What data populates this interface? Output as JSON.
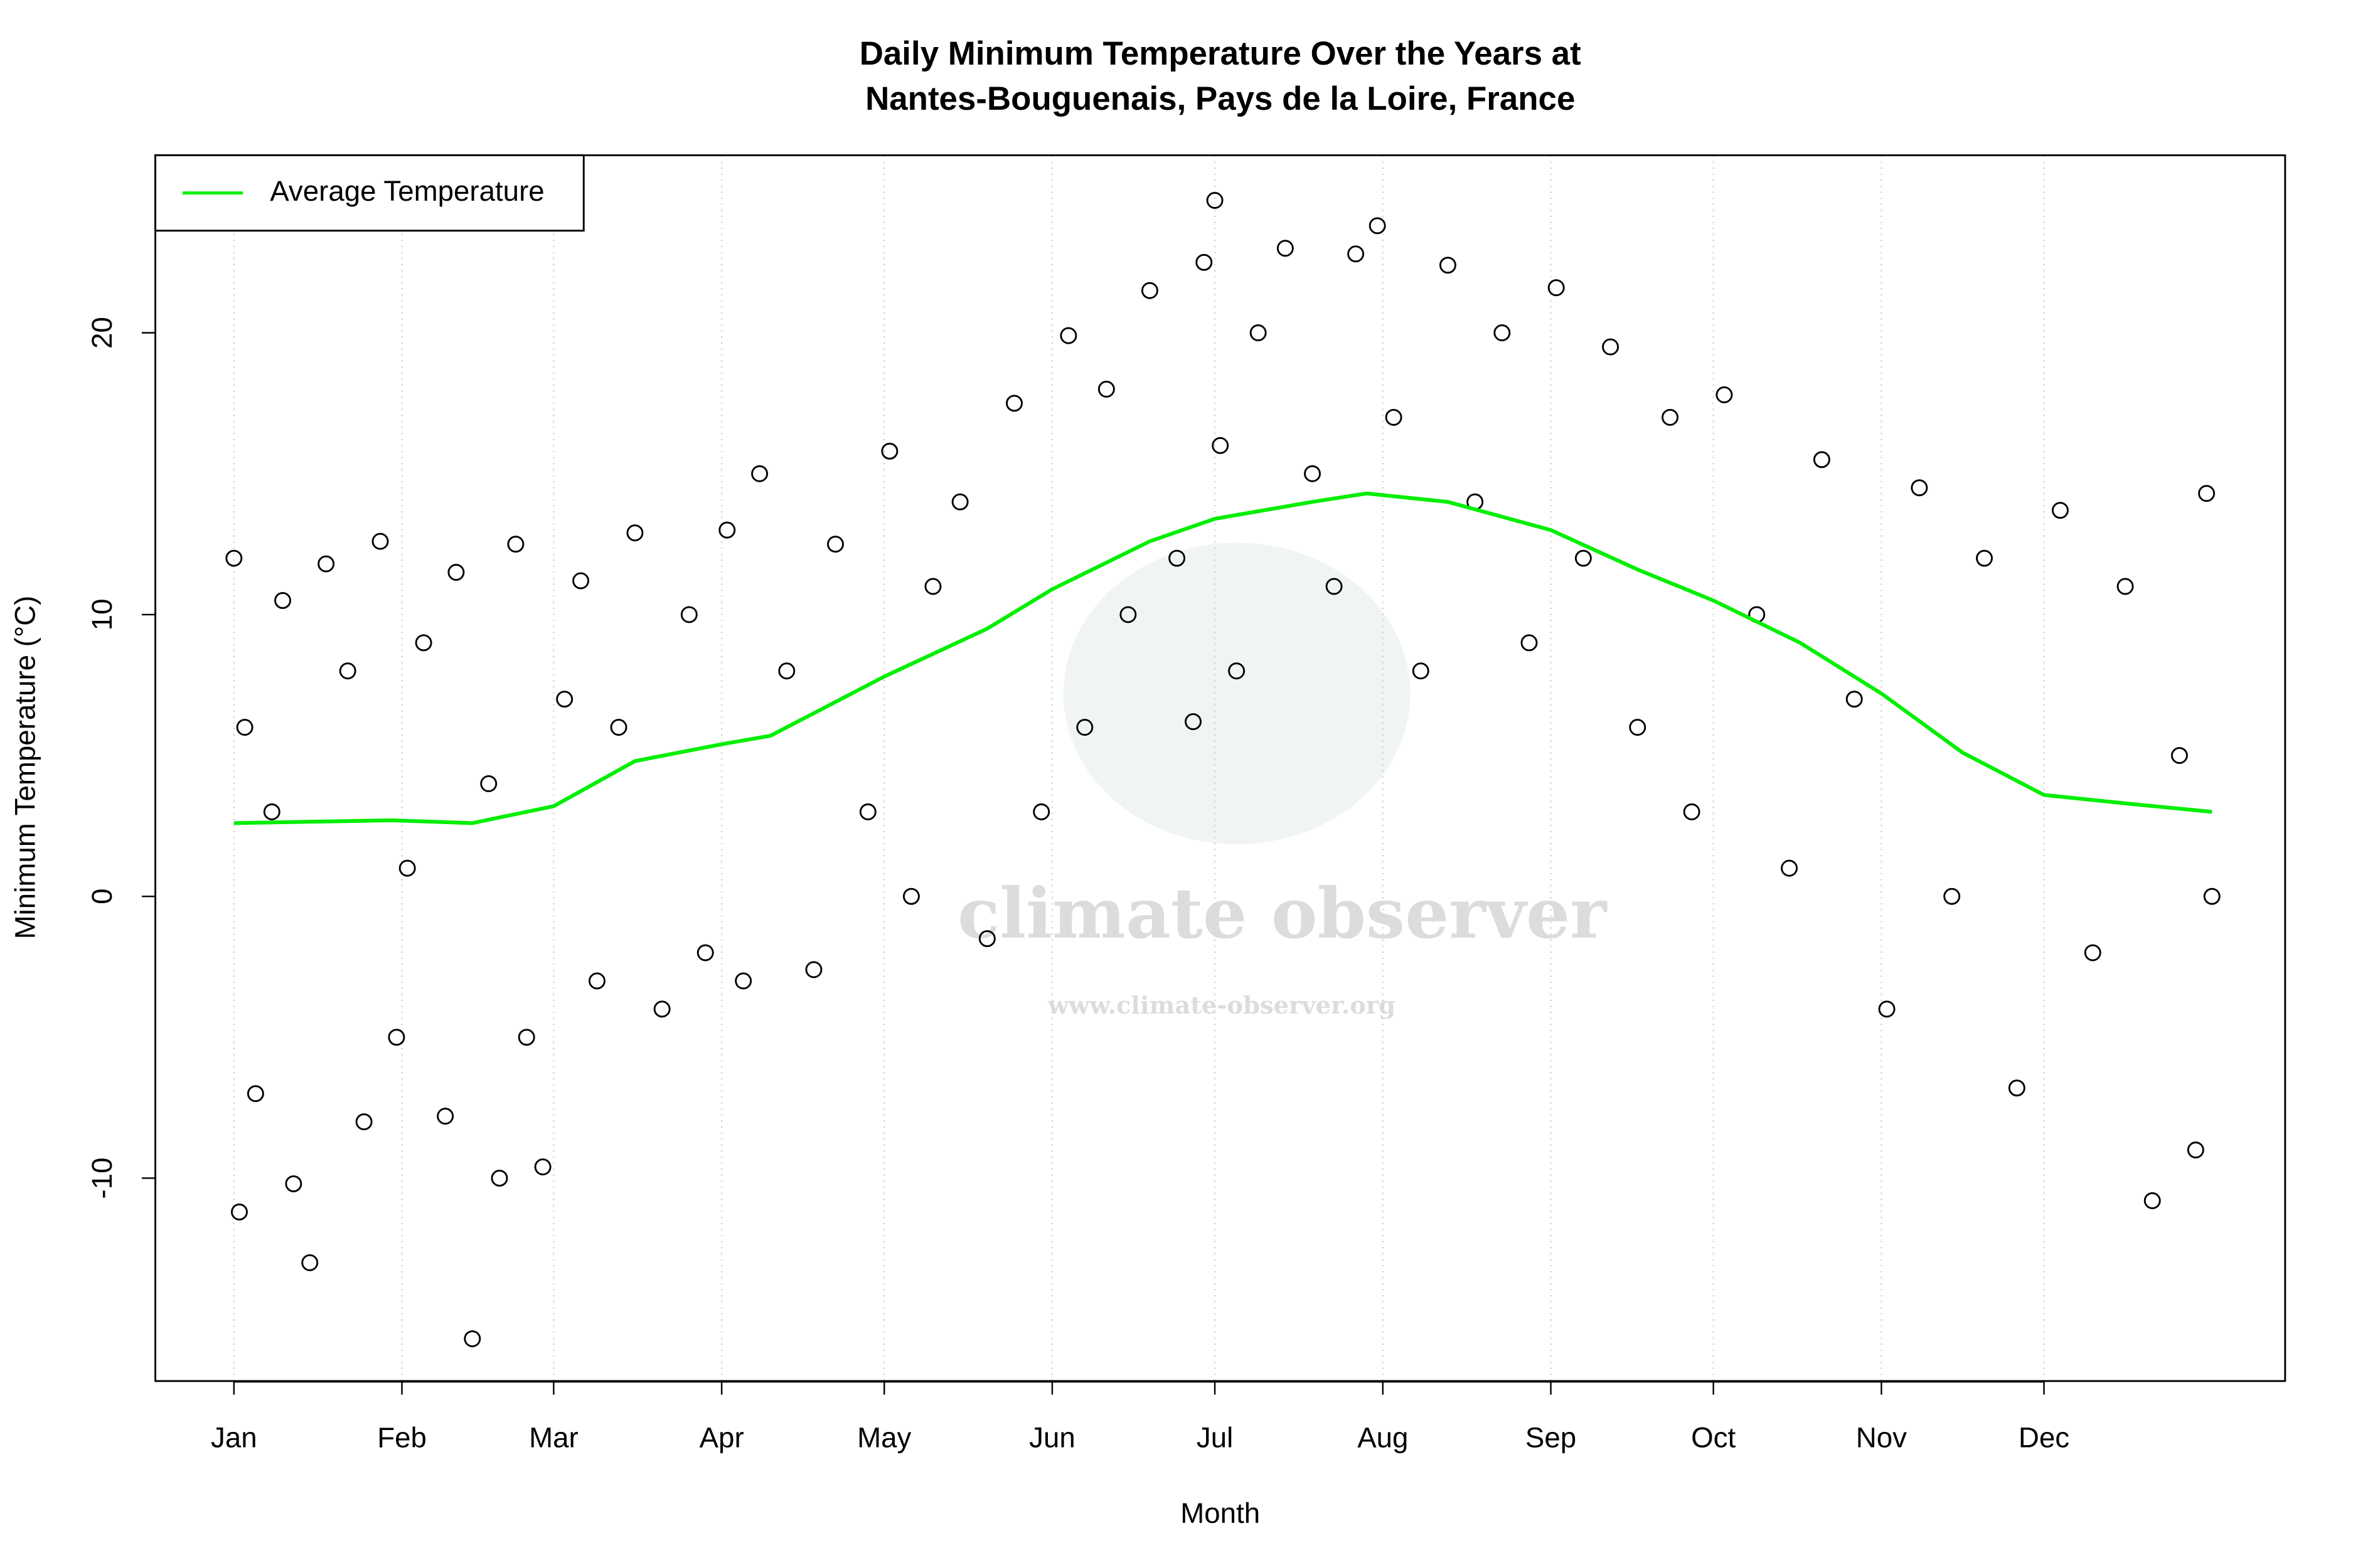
{
  "chart_data": {
    "type": "scatter",
    "title": "Daily Minimum Temperature Over the Years at",
    "subtitle": "Nantes-Bouguenais, Pays de la Loire, France",
    "x_label": "Month",
    "y_label": "Minimum Temperature (°C)",
    "watermark": "climate observer",
    "watermark_url": "www.climate-observer.org",
    "xlim": [
      -13.5,
      379.5
    ],
    "ylim": [
      -17.2,
      26.3
    ],
    "xticks": [
      {
        "value": 1,
        "label": "Jan"
      },
      {
        "value": 32,
        "label": "Feb"
      },
      {
        "value": 60,
        "label": "Mar"
      },
      {
        "value": 91,
        "label": "Apr"
      },
      {
        "value": 121,
        "label": "May"
      },
      {
        "value": 152,
        "label": "Jun"
      },
      {
        "value": 182,
        "label": "Jul"
      },
      {
        "value": 213,
        "label": "Aug"
      },
      {
        "value": 244,
        "label": "Sep"
      },
      {
        "value": 274,
        "label": "Oct"
      },
      {
        "value": 305,
        "label": "Nov"
      },
      {
        "value": 335,
        "label": "Dec"
      }
    ],
    "yticks": [
      -10,
      0,
      10,
      20
    ],
    "grid": true,
    "legend": "topleft",
    "points": {
      "color": "#000000",
      "x": [
        1,
        2,
        3,
        5,
        8,
        10,
        12,
        15,
        18,
        22,
        25,
        28,
        31,
        33,
        36,
        40,
        42,
        45,
        48,
        50,
        53,
        55,
        58,
        62,
        65,
        68,
        72,
        75,
        80,
        85,
        88,
        92,
        95,
        98,
        103,
        108,
        112,
        118,
        122,
        126,
        130,
        135,
        140,
        145,
        150,
        155,
        158,
        162,
        166,
        170,
        175,
        178,
        180,
        182,
        183,
        186,
        190,
        195,
        200,
        204,
        208,
        212,
        215,
        220,
        225,
        230,
        235,
        240,
        245,
        250,
        255,
        260,
        266,
        270,
        276,
        282,
        288,
        294,
        300,
        306,
        312,
        318,
        324,
        330,
        338,
        344,
        350,
        355,
        360,
        363,
        365,
        366
      ],
      "y": [
        12,
        -11.2,
        6,
        -7,
        3,
        10.5,
        -10.2,
        -13,
        11.8,
        8,
        -8,
        12.6,
        -5,
        1,
        9,
        -7.8,
        11.5,
        -15.7,
        4,
        -10,
        12.5,
        -5,
        -9.6,
        7,
        11.2,
        -3,
        6,
        12.9,
        -4,
        10,
        -2,
        13,
        -3,
        15,
        8,
        -2.6,
        12.5,
        3,
        15.8,
        0,
        11,
        14,
        -1.5,
        17.5,
        3,
        19.9,
        6,
        18,
        10,
        21.5,
        12,
        6.2,
        22.5,
        24.7,
        16,
        8,
        20,
        23,
        15,
        11,
        22.8,
        23.8,
        17,
        8,
        22.4,
        14,
        20,
        9,
        21.6,
        12,
        19.5,
        6,
        17,
        3,
        17.8,
        10,
        1,
        15.5,
        7,
        -4,
        14.5,
        0,
        12,
        -6.8,
        13.7,
        -2,
        11,
        -10.8,
        5,
        -9,
        14.3,
        0
      ]
    },
    "series": [
      {
        "name": "Average Temperature",
        "color": "#00ee00",
        "x": [
          1,
          30,
          45,
          60,
          75,
          91,
          100,
          121,
          140,
          152,
          170,
          182,
          200,
          210,
          225,
          244,
          260,
          274,
          290,
          305,
          320,
          335,
          350,
          366
        ],
        "values": [
          2.6,
          2.7,
          2.6,
          3.2,
          4.8,
          5.4,
          5.7,
          7.8,
          9.5,
          10.9,
          12.6,
          13.4,
          14.0,
          14.3,
          14.0,
          13.0,
          11.6,
          10.5,
          9.0,
          7.2,
          5.1,
          3.6,
          3.3,
          3.0
        ]
      }
    ]
  }
}
